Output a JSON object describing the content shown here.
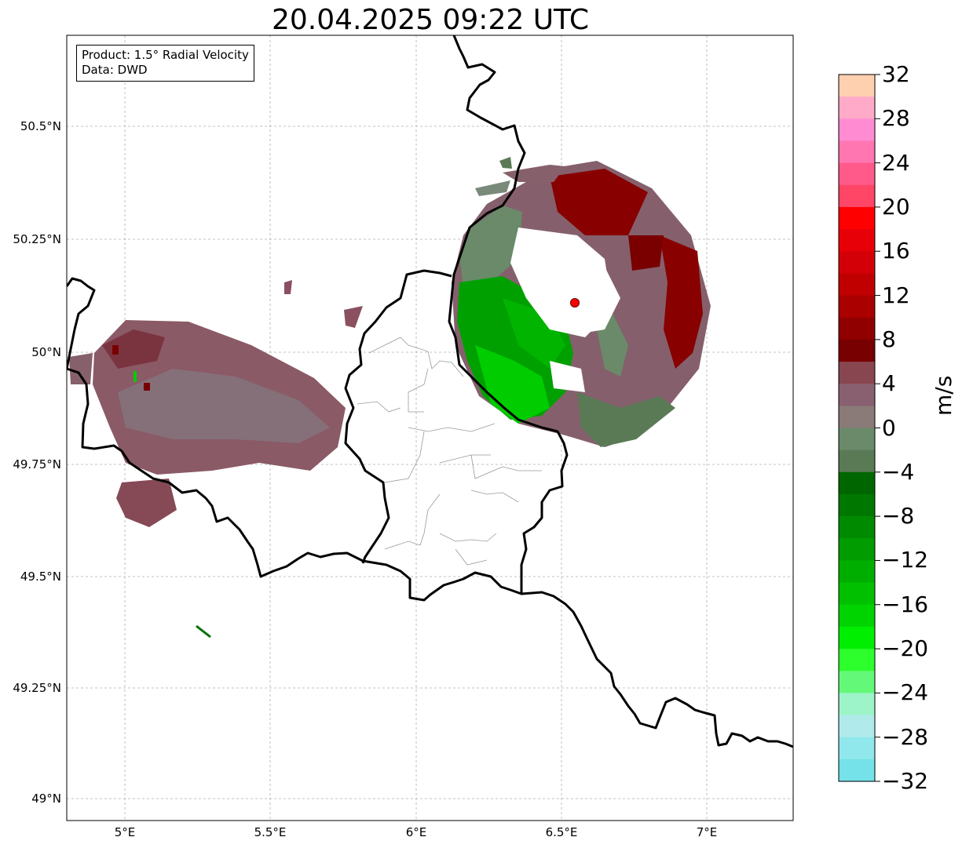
{
  "title": "20.04.2025 09:22 UTC",
  "info_box": {
    "product": "Product: 1.5° Radial Velocity",
    "data": "Data: DWD"
  },
  "latitude_labels": [
    "50.5°N",
    "50.25°N",
    "50°N",
    "49.75°N",
    "49.5°N",
    "49.25°N",
    "49°N"
  ],
  "longitude_labels": [
    "5°E",
    "5.5°E",
    "6°E",
    "6.5°E",
    "7°E"
  ],
  "colorbar": {
    "label": "m/s",
    "ticks": [
      "32",
      "28",
      "24",
      "20",
      "16",
      "12",
      "8",
      "4",
      "0",
      "−4",
      "−8",
      "−12",
      "−16",
      "−20",
      "−24",
      "−28",
      "−32"
    ],
    "colors_top_to_bottom": [
      "#ffd0b0",
      "#ffaac8",
      "#ff8cd2",
      "#ff76b0",
      "#ff5a8a",
      "#ff4666",
      "#ff0000",
      "#e80008",
      "#d40008",
      "#c00000",
      "#aa0000",
      "#900000",
      "#780000",
      "#884650",
      "#886070",
      "#8a7a78",
      "#6a8a6a",
      "#5a7a56",
      "#006600",
      "#007800",
      "#008a00",
      "#009c00",
      "#00ae00",
      "#00c000",
      "#00d400",
      "#00ee00",
      "#2cff2c",
      "#64f878",
      "#9cf4c8",
      "#b0eaea",
      "#90e8ec",
      "#74e2e8"
    ]
  },
  "radar_site_color": "#ff0000"
}
